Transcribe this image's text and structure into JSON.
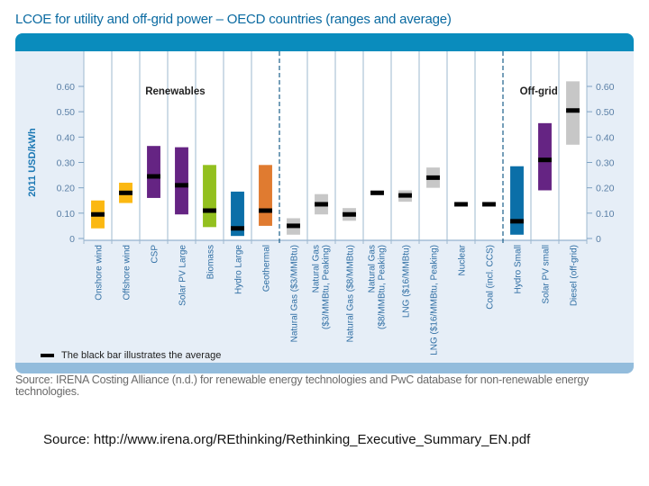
{
  "title": "LCOE for utility and off-grid power – OECD countries (ranges and average)",
  "legend_text": "The black bar illustrates the average",
  "source_irena": "Source: IRENA Costing Alliance (n.d.) for renewable energy technologies and PwC database for non-renewable energy technologies.",
  "source_url": "Source: http://www.irena.org/REthinking/Rethinking_Executive_Summary_EN.pdf",
  "colors": {
    "header": "#0a8cbd",
    "panel": "#e6eef7",
    "wind": "#fbb812",
    "solar": "#652483",
    "biomass": "#93c01f",
    "hydro": "#0b6fa8",
    "geothermal": "#e07b30",
    "fossil": "#c7c7c7",
    "average": "#000000"
  },
  "chart_data": {
    "type": "range-bar",
    "title": "LCOE for utility and off-grid power – OECD countries (ranges and average)",
    "ylabel": "2011 USD/kWh",
    "xlabel": "",
    "ylim": [
      0,
      0.6
    ],
    "yticks": [
      "0",
      "0.10",
      "0.20",
      "0.30",
      "0.40",
      "0.50",
      "0.60"
    ],
    "ytick_values": [
      0,
      0.1,
      0.2,
      0.3,
      0.4,
      0.5,
      0.6
    ],
    "grid": false,
    "groups": [
      {
        "label": "Renewables",
        "start": 0,
        "end": 6
      },
      {
        "label": "",
        "start": 7,
        "end": 14
      },
      {
        "label": "Off-grid",
        "start": 15,
        "end": 17
      }
    ],
    "categories": [
      "Onshore wind",
      "Offshore wind",
      "CSP",
      "Solar PV Large",
      "Biomass",
      "Hydro Large",
      "Geothermal",
      "Natural Gas ($3/MMBtu)",
      "Natural Gas ($3/MMBtu, Peaking)",
      "Natural Gas ($8/MMBtu)",
      "Natural Gas ($8/MMBtu, Peaking)",
      "LNG ($16/MMBtu)",
      "LNG ($16/MMBtu, Peaking)",
      "Nuclear",
      "Coal (incl. CCS)",
      "Hydro Small",
      "Solar PV small",
      "Diesel (off-grid)"
    ],
    "category_label_lines": [
      [
        "Onshore wind"
      ],
      [
        "Offshore wind"
      ],
      [
        "CSP"
      ],
      [
        "Solar PV Large"
      ],
      [
        "Biomass"
      ],
      [
        "Hydro Large"
      ],
      [
        "Geothermal"
      ],
      [
        "Natural Gas ($3/MMBtu)"
      ],
      [
        "Natural Gas",
        "($3/MMBtu, Peaking)"
      ],
      [
        "Natural Gas ($8/MMBtu)"
      ],
      [
        "Natural Gas",
        "($8/MMBtu, Peaking)"
      ],
      [
        "LNG ($16/MMBtu)"
      ],
      [
        "LNG ($16/MMBtu, Peaking)"
      ],
      [
        "Nuclear"
      ],
      [
        "Coal (incl. CCS)"
      ],
      [
        "Hydro Small"
      ],
      [
        "Solar PV small"
      ],
      [
        "Diesel (off-grid)"
      ]
    ],
    "series": [
      {
        "name": "low",
        "values": [
          0.04,
          0.14,
          0.16,
          0.095,
          0.045,
          0.01,
          0.05,
          0.015,
          0.095,
          0.07,
          0.175,
          0.145,
          0.2,
          0.135,
          0.135,
          0.015,
          0.19,
          0.37
        ]
      },
      {
        "name": "high",
        "values": [
          0.15,
          0.22,
          0.365,
          0.36,
          0.29,
          0.185,
          0.29,
          0.08,
          0.175,
          0.12,
          0.19,
          0.19,
          0.28,
          0.135,
          0.135,
          0.285,
          0.455,
          0.62
        ]
      },
      {
        "name": "average",
        "values": [
          0.095,
          0.18,
          0.245,
          0.21,
          0.11,
          0.04,
          0.11,
          0.05,
          0.135,
          0.095,
          0.18,
          0.17,
          0.24,
          0.135,
          0.135,
          0.068,
          0.31,
          0.505
        ]
      }
    ],
    "bar_color_keys": [
      "wind",
      "wind",
      "solar",
      "solar",
      "biomass",
      "hydro",
      "geothermal",
      "fossil",
      "fossil",
      "fossil",
      "fossil",
      "fossil",
      "fossil",
      "fossil",
      "fossil",
      "hydro",
      "solar",
      "fossil"
    ],
    "legend": [
      {
        "label": "The black bar illustrates the average",
        "position": "bottom-left"
      }
    ]
  }
}
